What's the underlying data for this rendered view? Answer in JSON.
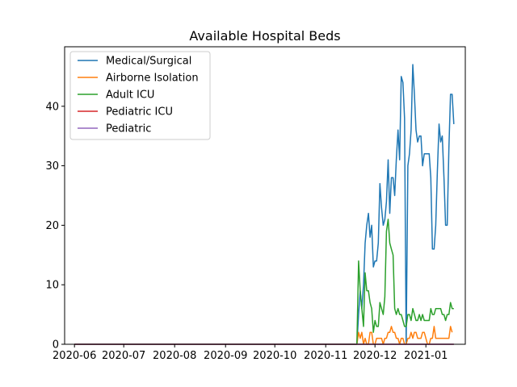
{
  "chart_data": {
    "type": "line",
    "title": "Available Hospital Beds",
    "xlabel": "",
    "ylabel": "",
    "x_ticks": [
      "2020-06",
      "2020-07",
      "2020-08",
      "2020-09",
      "2020-10",
      "2020-11",
      "2020-12",
      "2021-01"
    ],
    "x_range": [
      "2020-05-26",
      "2021-01-25"
    ],
    "ylim": [
      0,
      50
    ],
    "y_ticks": [
      0,
      10,
      20,
      30,
      40
    ],
    "grid": false,
    "legend_position": "top-left",
    "series": [
      {
        "name": "Medical/Surgical",
        "color": "#1f77b4",
        "points": [
          [
            "2020-06-01",
            0
          ],
          [
            "2020-11-20",
            0
          ],
          [
            "2020-11-21",
            5
          ],
          [
            "2020-11-22",
            9
          ],
          [
            "2020-11-23",
            6
          ],
          [
            "2020-11-24",
            10
          ],
          [
            "2020-11-25",
            17
          ],
          [
            "2020-11-26",
            20
          ],
          [
            "2020-11-27",
            22
          ],
          [
            "2020-11-28",
            18
          ],
          [
            "2020-11-29",
            20
          ],
          [
            "2020-11-30",
            13
          ],
          [
            "2020-12-01",
            14
          ],
          [
            "2020-12-02",
            14
          ],
          [
            "2020-12-03",
            17
          ],
          [
            "2020-12-04",
            27
          ],
          [
            "2020-12-05",
            23
          ],
          [
            "2020-12-06",
            20
          ],
          [
            "2020-12-07",
            21
          ],
          [
            "2020-12-08",
            24
          ],
          [
            "2020-12-09",
            31
          ],
          [
            "2020-12-10",
            22
          ],
          [
            "2020-12-11",
            28
          ],
          [
            "2020-12-12",
            28
          ],
          [
            "2020-12-13",
            25
          ],
          [
            "2020-12-14",
            31
          ],
          [
            "2020-12-15",
            36
          ],
          [
            "2020-12-16",
            31
          ],
          [
            "2020-12-17",
            45
          ],
          [
            "2020-12-18",
            44
          ],
          [
            "2020-12-19",
            38
          ],
          [
            "2020-12-20",
            0
          ],
          [
            "2020-12-21",
            30
          ],
          [
            "2020-12-22",
            32
          ],
          [
            "2020-12-23",
            36
          ],
          [
            "2020-12-24",
            47
          ],
          [
            "2020-12-25",
            42
          ],
          [
            "2020-12-26",
            36
          ],
          [
            "2020-12-27",
            34
          ],
          [
            "2020-12-28",
            35
          ],
          [
            "2020-12-29",
            35
          ],
          [
            "2020-12-30",
            30
          ],
          [
            "2020-12-31",
            32
          ],
          [
            "2021-01-01",
            32
          ],
          [
            "2021-01-02",
            32
          ],
          [
            "2021-01-03",
            32
          ],
          [
            "2021-01-04",
            28
          ],
          [
            "2021-01-05",
            16
          ],
          [
            "2021-01-06",
            16
          ],
          [
            "2021-01-07",
            20
          ],
          [
            "2021-01-08",
            29
          ],
          [
            "2021-01-09",
            37
          ],
          [
            "2021-01-10",
            34
          ],
          [
            "2021-01-11",
            35
          ],
          [
            "2021-01-12",
            28
          ],
          [
            "2021-01-13",
            20
          ],
          [
            "2021-01-14",
            20
          ],
          [
            "2021-01-15",
            33
          ],
          [
            "2021-01-16",
            42
          ],
          [
            "2021-01-17",
            42
          ],
          [
            "2021-01-18",
            37
          ]
        ]
      },
      {
        "name": "Airborne Isolation",
        "color": "#ff7f0e",
        "points": [
          [
            "2020-06-01",
            0
          ],
          [
            "2020-11-20",
            0
          ],
          [
            "2020-11-21",
            2
          ],
          [
            "2020-11-22",
            1
          ],
          [
            "2020-11-23",
            2
          ],
          [
            "2020-11-24",
            0
          ],
          [
            "2020-11-25",
            1
          ],
          [
            "2020-11-26",
            0
          ],
          [
            "2020-11-27",
            0
          ],
          [
            "2020-11-28",
            2
          ],
          [
            "2020-11-29",
            2
          ],
          [
            "2020-11-30",
            0
          ],
          [
            "2020-12-01",
            0
          ],
          [
            "2020-12-02",
            1
          ],
          [
            "2020-12-03",
            1
          ],
          [
            "2020-12-04",
            1
          ],
          [
            "2020-12-05",
            1
          ],
          [
            "2020-12-06",
            0
          ],
          [
            "2020-12-07",
            1
          ],
          [
            "2020-12-08",
            1
          ],
          [
            "2020-12-09",
            2
          ],
          [
            "2020-12-10",
            2
          ],
          [
            "2020-12-11",
            3
          ],
          [
            "2020-12-12",
            2
          ],
          [
            "2020-12-13",
            2
          ],
          [
            "2020-12-14",
            1
          ],
          [
            "2020-12-15",
            1
          ],
          [
            "2020-12-16",
            0
          ],
          [
            "2020-12-17",
            1
          ],
          [
            "2020-12-18",
            1
          ],
          [
            "2020-12-19",
            0
          ],
          [
            "2020-12-20",
            0
          ],
          [
            "2020-12-21",
            1
          ],
          [
            "2020-12-22",
            1
          ],
          [
            "2020-12-23",
            2
          ],
          [
            "2020-12-24",
            1
          ],
          [
            "2020-12-25",
            2
          ],
          [
            "2020-12-26",
            2
          ],
          [
            "2020-12-27",
            1
          ],
          [
            "2020-12-28",
            1
          ],
          [
            "2020-12-29",
            1
          ],
          [
            "2020-12-30",
            2
          ],
          [
            "2020-12-31",
            2
          ],
          [
            "2021-01-01",
            1
          ],
          [
            "2021-01-02",
            0
          ],
          [
            "2021-01-03",
            0
          ],
          [
            "2021-01-04",
            1
          ],
          [
            "2021-01-05",
            1
          ],
          [
            "2021-01-06",
            3
          ],
          [
            "2021-01-07",
            1
          ],
          [
            "2021-01-08",
            1
          ],
          [
            "2021-01-09",
            1
          ],
          [
            "2021-01-10",
            1
          ],
          [
            "2021-01-11",
            1
          ],
          [
            "2021-01-12",
            1
          ],
          [
            "2021-01-13",
            1
          ],
          [
            "2021-01-14",
            1
          ],
          [
            "2021-01-15",
            1
          ],
          [
            "2021-01-16",
            3
          ],
          [
            "2021-01-17",
            2
          ]
        ]
      },
      {
        "name": "Adult ICU",
        "color": "#2ca02c",
        "points": [
          [
            "2020-06-01",
            0
          ],
          [
            "2020-11-20",
            0
          ],
          [
            "2020-11-21",
            14
          ],
          [
            "2020-11-22",
            9
          ],
          [
            "2020-11-23",
            6
          ],
          [
            "2020-11-24",
            3
          ],
          [
            "2020-11-25",
            12
          ],
          [
            "2020-11-26",
            9
          ],
          [
            "2020-11-27",
            9
          ],
          [
            "2020-11-28",
            7
          ],
          [
            "2020-11-29",
            6
          ],
          [
            "2020-11-30",
            2
          ],
          [
            "2020-12-01",
            4
          ],
          [
            "2020-12-02",
            3
          ],
          [
            "2020-12-03",
            3
          ],
          [
            "2020-12-04",
            7
          ],
          [
            "2020-12-05",
            6
          ],
          [
            "2020-12-06",
            5
          ],
          [
            "2020-12-07",
            8
          ],
          [
            "2020-12-08",
            19
          ],
          [
            "2020-12-09",
            21
          ],
          [
            "2020-12-10",
            17
          ],
          [
            "2020-12-11",
            16
          ],
          [
            "2020-12-12",
            15
          ],
          [
            "2020-12-13",
            6
          ],
          [
            "2020-12-14",
            5
          ],
          [
            "2020-12-15",
            6
          ],
          [
            "2020-12-16",
            5
          ],
          [
            "2020-12-17",
            5
          ],
          [
            "2020-12-18",
            4
          ],
          [
            "2020-12-19",
            3
          ],
          [
            "2020-12-20",
            3
          ],
          [
            "2020-12-21",
            5
          ],
          [
            "2020-12-22",
            5
          ],
          [
            "2020-12-23",
            4
          ],
          [
            "2020-12-24",
            6
          ],
          [
            "2020-12-25",
            5
          ],
          [
            "2020-12-26",
            4
          ],
          [
            "2020-12-27",
            4
          ],
          [
            "2020-12-28",
            5
          ],
          [
            "2020-12-29",
            4
          ],
          [
            "2020-12-30",
            5
          ],
          [
            "2020-12-31",
            4
          ],
          [
            "2021-01-01",
            4
          ],
          [
            "2021-01-02",
            4
          ],
          [
            "2021-01-03",
            4
          ],
          [
            "2021-01-04",
            6
          ],
          [
            "2021-01-05",
            5
          ],
          [
            "2021-01-06",
            5
          ],
          [
            "2021-01-07",
            6
          ],
          [
            "2021-01-08",
            6
          ],
          [
            "2021-01-09",
            6
          ],
          [
            "2021-01-10",
            6
          ],
          [
            "2021-01-11",
            5
          ],
          [
            "2021-01-12",
            5
          ],
          [
            "2021-01-13",
            4
          ],
          [
            "2021-01-14",
            5
          ],
          [
            "2021-01-15",
            5
          ],
          [
            "2021-01-16",
            7
          ],
          [
            "2021-01-17",
            6
          ],
          [
            "2021-01-18",
            6
          ]
        ]
      },
      {
        "name": "Pediatric ICU",
        "color": "#d62728",
        "points": [
          [
            "2020-06-01",
            0
          ],
          [
            "2021-01-18",
            0
          ]
        ]
      },
      {
        "name": "Pediatric",
        "color": "#9467bd",
        "points": [
          [
            "2020-06-01",
            0
          ],
          [
            "2021-01-18",
            0
          ]
        ]
      }
    ]
  }
}
